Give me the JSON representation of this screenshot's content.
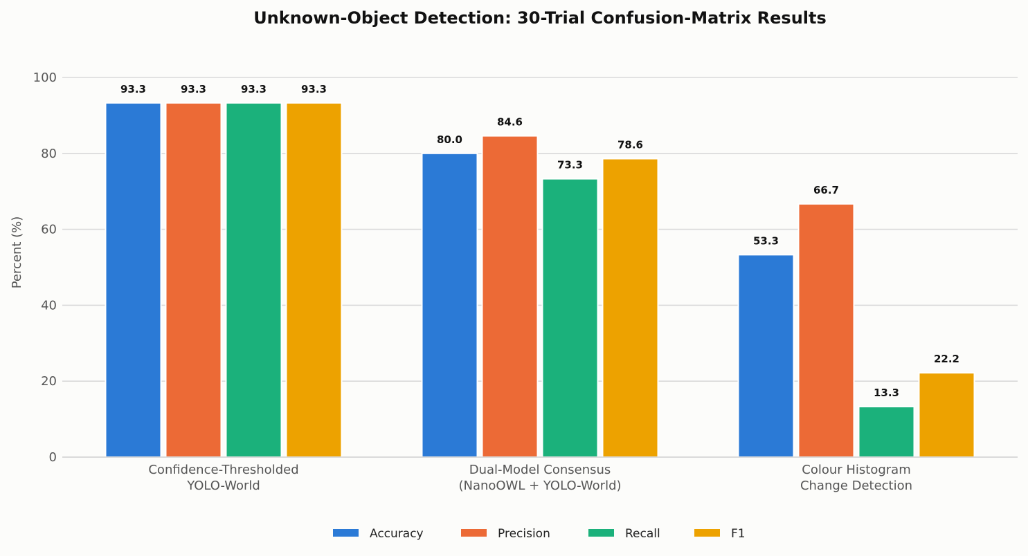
{
  "chart_data": {
    "type": "bar",
    "title": "Unknown-Object Detection: 30-Trial Confusion-Matrix Results",
    "xlabel": "",
    "ylabel": "Percent (%)",
    "ylim": [
      0,
      100
    ],
    "yticks": [
      0,
      20,
      40,
      60,
      80,
      100
    ],
    "grid": true,
    "legend_position": "bottom-center",
    "categories": [
      [
        "Confidence-Thresholded",
        "YOLO-World"
      ],
      [
        "Dual-Model Consensus",
        "(NanoOWL + YOLO-World)"
      ],
      [
        "Colour Histogram",
        "Change Detection"
      ]
    ],
    "series": [
      {
        "name": "Accuracy",
        "color": "#2b7ad6",
        "values": [
          93.3,
          80.0,
          53.3
        ]
      },
      {
        "name": "Precision",
        "color": "#ec6a36",
        "values": [
          93.3,
          84.6,
          66.7
        ]
      },
      {
        "name": "Recall",
        "color": "#1bb17b",
        "values": [
          93.3,
          73.3,
          13.3
        ]
      },
      {
        "name": "F1",
        "color": "#eda200",
        "values": [
          93.3,
          78.6,
          22.2
        ]
      }
    ]
  }
}
